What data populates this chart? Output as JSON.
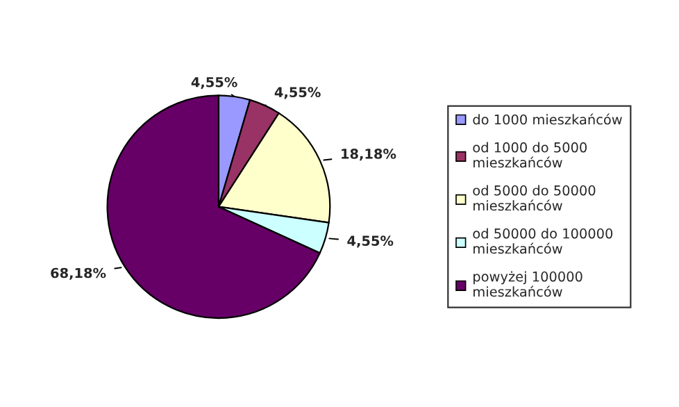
{
  "chart_data": {
    "type": "pie",
    "categories": [
      "do 1000 mieszkańców",
      "od 1000 do 5000 mieszkańców",
      "od 5000 do 50000 mieszkańców",
      "od 50000 do 100000 mieszkańców",
      "powyżej 100000 mieszkańców"
    ],
    "values": [
      4.55,
      4.55,
      18.18,
      4.55,
      68.18
    ],
    "value_labels": [
      "4,55%",
      "4,55%",
      "18,18%",
      "4,55%",
      "68,18%"
    ],
    "colors": [
      "#9999ff",
      "#993366",
      "#ffffcc",
      "#ccffff",
      "#660066"
    ],
    "legend": "right"
  }
}
